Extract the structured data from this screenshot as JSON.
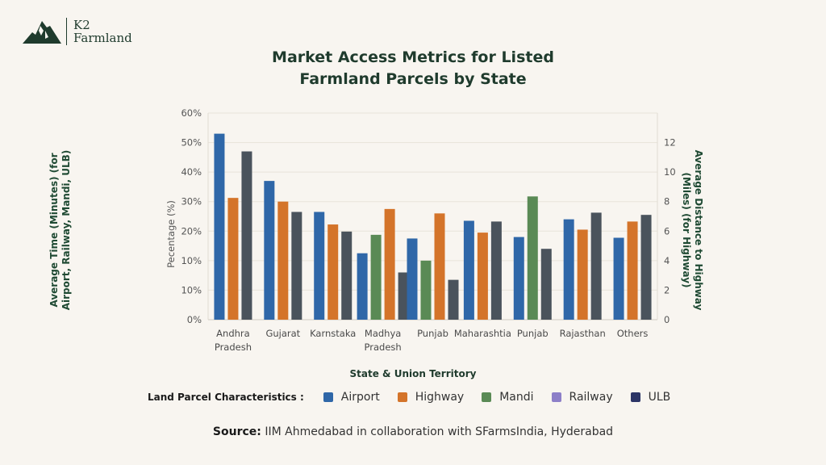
{
  "brand": {
    "name_line1": "K2",
    "name_line2": "Farmland"
  },
  "colors": {
    "Airport": "#2f67a8",
    "Highway": "#d4742a",
    "Mandi": "#5a8a55",
    "Railway": "#8d7fc8",
    "ULB": "#2c3566",
    "ULB_bars": "#4a535c",
    "title": "#1f3b2d"
  },
  "chart_data": {
    "type": "bar",
    "title": [
      "Market Access Metrics for Listed",
      "Farmland Parcels by State"
    ],
    "categories": [
      [
        "Andhra",
        "Pradesh"
      ],
      [
        "Gujarat"
      ],
      [
        "Karnstaka"
      ],
      [
        "Madhya",
        "Pradesh"
      ],
      [
        "Punjab"
      ],
      [
        "Maharashtia"
      ],
      [
        "Punjab"
      ],
      [
        "Rajasthan"
      ],
      [
        "Others"
      ]
    ],
    "xlabel": "State & Union Territory",
    "ylabel_left": [
      "Average Time (Minutes) (for",
      "Airport, Railway, Mandi, ULB)"
    ],
    "ylabel_left_inner": "Pecentage (%)",
    "ylabel_right": [
      "Average Distance to Highway",
      "(Miles) (for Highway)"
    ],
    "left_ticks": [
      "0%",
      "10%",
      "10%",
      "20%",
      "30%",
      "40%",
      "50%",
      "60%"
    ],
    "right_ticks": [
      "0",
      "2",
      "4",
      "6",
      "8",
      "10",
      "12"
    ],
    "ylim_right": [
      0,
      14
    ],
    "grid": true,
    "legend_title": "Land Parcel Characteristics :",
    "legend_placement": "bottom",
    "legend": [
      "Airport",
      "Highway",
      "Mandi",
      "Railway",
      "ULB"
    ],
    "series_order_note_in_bars": [
      "Airport",
      "Mandi",
      "Highway",
      "ULB"
    ],
    "series": [
      {
        "name": "Airport",
        "values": [
          12.6,
          9.4,
          7.3,
          4.5,
          5.5,
          6.7,
          5.6,
          6.8,
          5.55
        ]
      },
      {
        "name": "Mandi",
        "values": [
          null,
          null,
          null,
          5.75,
          4.0,
          null,
          8.35,
          null,
          null
        ]
      },
      {
        "name": "Highway",
        "values": [
          8.25,
          8.0,
          6.45,
          7.5,
          7.2,
          5.9,
          null,
          6.1,
          6.65
        ]
      },
      {
        "name": "Railway",
        "values": [
          null,
          null,
          null,
          null,
          null,
          null,
          null,
          null,
          null
        ]
      },
      {
        "name": "ULB",
        "values": [
          11.4,
          7.3,
          5.97,
          3.2,
          2.7,
          6.65,
          4.8,
          7.25,
          7.1
        ]
      }
    ]
  },
  "source": {
    "label": "Source:",
    "text": " IIM Ahmedabad in collaboration with SFarmsIndia, Hyderabad"
  }
}
